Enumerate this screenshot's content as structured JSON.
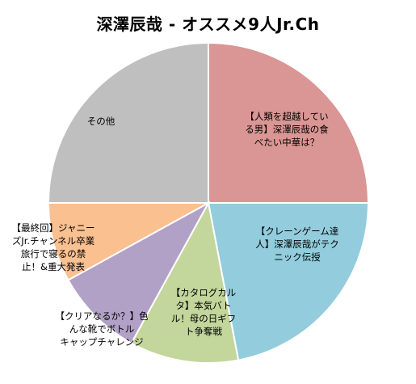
{
  "chart_data": {
    "type": "pie",
    "title": "深澤辰哉 - オススメ9人Jr.Ch",
    "start_angle_deg": 0,
    "direction": "clockwise",
    "slices": [
      {
        "label_lines": [
          "【人類を超越してい",
          "る男】深澤辰哉の食",
          "べたい中華は？"
        ],
        "value": 25,
        "color": "#da9694"
      },
      {
        "label_lines": [
          "【クレーンゲーム達",
          "人】深澤辰哉がテク",
          "ニック伝授"
        ],
        "value": 22,
        "color": "#93cddd"
      },
      {
        "label_lines": [
          "【カタログカル",
          "タ】本気バト",
          "ル！母の日ギフ",
          "ト争奪戦"
        ],
        "value": 11,
        "color": "#c3d69b"
      },
      {
        "label_lines": [
          "【クリアなるか？】色",
          "んな靴でボトル",
          "キャップチャレンジ"
        ],
        "value": 9,
        "color": "#b2a1c7"
      },
      {
        "label_lines": [
          "【最終回】ジャニー",
          "ズJr.チャンネル卒業",
          "旅行で寝るの禁",
          "止！&重大発表"
        ],
        "value": 8,
        "color": "#fac090"
      },
      {
        "label_lines": [
          "その他"
        ],
        "value": 25,
        "color": "#bfbfbf"
      }
    ]
  }
}
